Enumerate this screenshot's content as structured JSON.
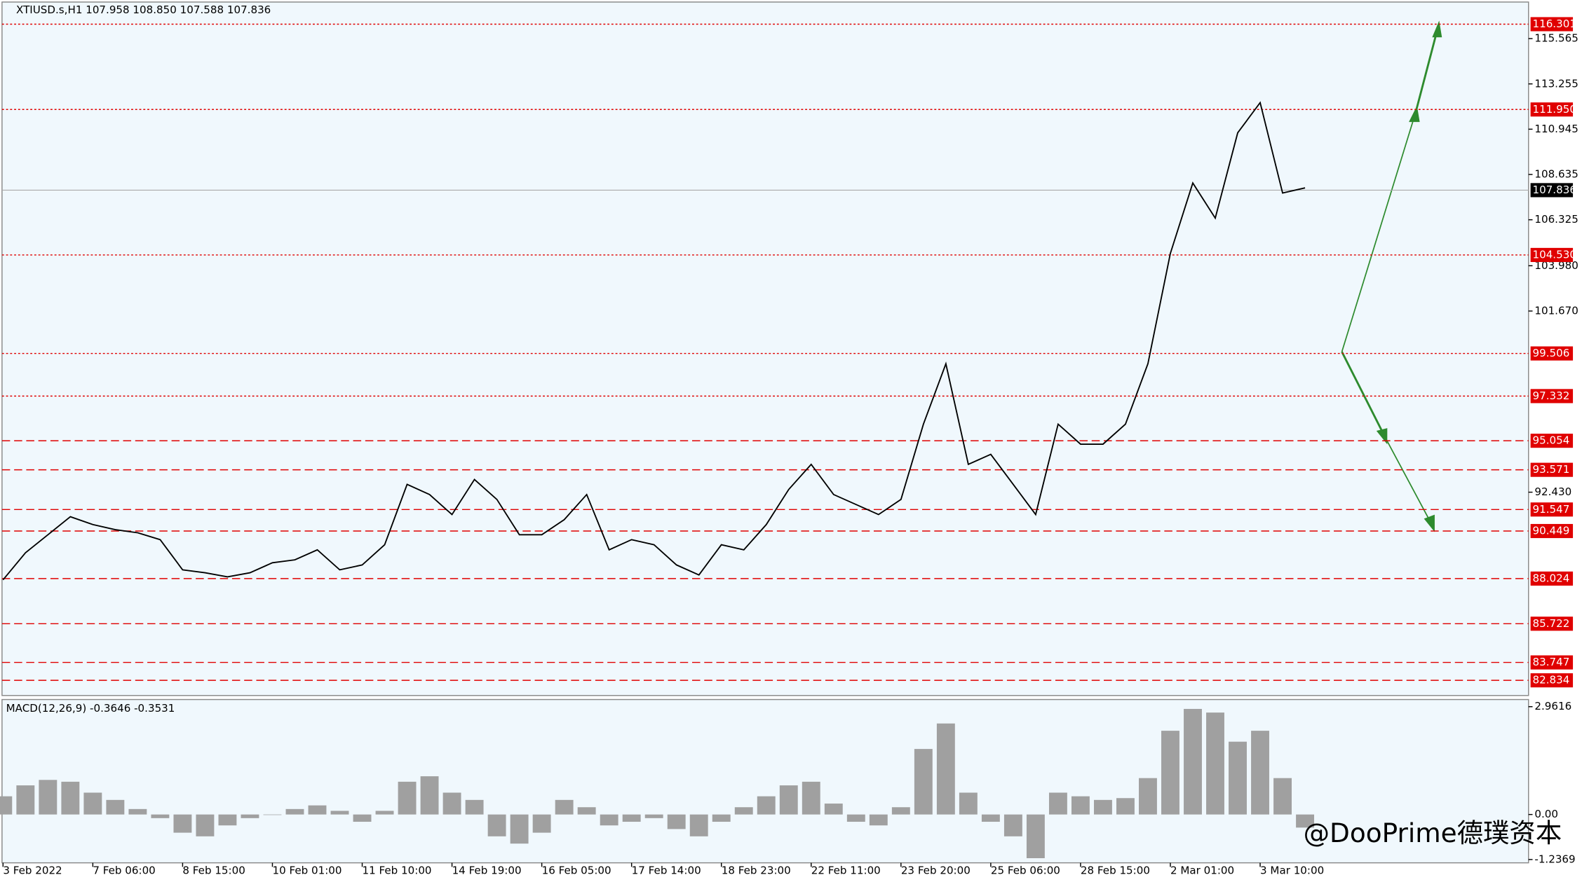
{
  "chart_data": {
    "type": "line",
    "title": "XTIUSD.s,H1  107.958 108.850 107.588 107.836",
    "x": [
      "3 Feb 2022",
      null,
      null,
      null,
      "7 Feb 06:00",
      null,
      null,
      null,
      "8 Feb 15:00",
      null,
      null,
      null,
      "10 Feb 01:00",
      null,
      null,
      null,
      "11 Feb 10:00",
      null,
      null,
      null,
      "14 Feb 19:00",
      null,
      null,
      null,
      "16 Feb 05:00",
      null,
      null,
      null,
      "17 Feb 14:00",
      null,
      null,
      null,
      "18 Feb 23:00",
      null,
      null,
      null,
      "22 Feb 11:00",
      null,
      null,
      null,
      "23 Feb 20:00",
      null,
      null,
      null,
      "25 Feb 06:00",
      null,
      null,
      null,
      "28 Feb 15:00",
      null,
      null,
      null,
      "2 Mar 01:00",
      null,
      null,
      null,
      "3 Mar 10:00",
      null,
      null
    ],
    "series": [
      {
        "color": "#000000",
        "values": [
          87.96,
          89.34,
          90.26,
          91.18,
          90.78,
          90.52,
          90.36,
          90.01,
          88.47,
          88.32,
          88.11,
          88.32,
          88.83,
          88.98,
          89.49,
          88.47,
          88.72,
          89.75,
          92.83,
          92.31,
          91.29,
          93.08,
          92.06,
          90.26,
          90.26,
          91.03,
          92.31,
          89.49,
          90.01,
          89.75,
          88.72,
          88.21,
          89.75,
          89.49,
          90.78,
          92.57,
          93.85,
          92.31,
          91.8,
          91.29,
          92.06,
          95.9,
          98.98,
          93.85,
          94.36,
          92.83,
          91.29,
          95.9,
          94.88,
          94.88,
          95.9,
          98.98,
          104.61,
          108.2,
          106.41,
          110.76,
          112.3,
          107.69,
          107.95
        ]
      }
    ],
    "ylim": [
      82.06,
      117.43
    ],
    "yticks": [
      115.565,
      113.255,
      110.945,
      108.635,
      106.325,
      {
        "value": 103.98,
        "label": "103.980"
      },
      {
        "value": 101.67,
        "label": "101.670"
      },
      {
        "value": 92.43,
        "label": "92.430"
      }
    ],
    "levels": [
      116.301,
      {
        "value": 111.95,
        "label": "111.950"
      },
      {
        "value": 104.53,
        "label": "104.530"
      },
      99.506,
      97.332,
      95.054,
      93.571,
      91.547,
      90.449,
      88.024,
      85.722,
      83.747,
      82.834
    ],
    "level_styles": [
      "dotted",
      "dotted",
      "dotted",
      "dotted",
      "dotted",
      "dashed",
      "dashed",
      "dashed",
      "dashed",
      "dashed",
      "dashed",
      "dashed",
      "dashed"
    ],
    "level_color": "#e00000",
    "current_price": 107.836,
    "macd": {
      "title": "MACD(12,26,9) -0.3646 -0.3531",
      "color": "#a0a0a0",
      "values": [
        0.5,
        0.8,
        0.95,
        0.9,
        0.6,
        0.4,
        0.15,
        -0.1,
        -0.5,
        -0.6,
        -0.3,
        -0.1,
        0.0,
        0.15,
        0.25,
        0.1,
        -0.2,
        0.1,
        0.9,
        1.05,
        0.6,
        0.4,
        -0.6,
        -0.8,
        -0.5,
        0.4,
        0.2,
        -0.3,
        -0.2,
        -0.1,
        -0.4,
        -0.6,
        -0.2,
        0.2,
        0.5,
        0.8,
        0.9,
        0.3,
        -0.2,
        -0.3,
        0.2,
        1.8,
        2.5,
        0.6,
        -0.2,
        -0.6,
        -1.2,
        0.6,
        0.5,
        0.4,
        0.45,
        1.0,
        2.3,
        2.9,
        2.8,
        2.0,
        2.3,
        1.0,
        -0.36
      ],
      "ylim": [
        -1.3,
        3.13
      ],
      "yticks": [
        2.9616,
        {
          "value": 0,
          "label": "0.00"
        },
        -1.2369
      ]
    },
    "watermark": "@DooPrime德璞资本"
  }
}
